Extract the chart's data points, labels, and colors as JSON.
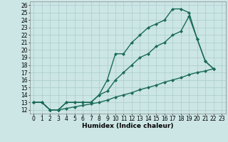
{
  "xlabel": "Humidex (Indice chaleur)",
  "bg_color": "#cce5e5",
  "grid_color": "#aacccc",
  "line_color": "#1a6b5a",
  "xlim": [
    -0.5,
    23.5
  ],
  "ylim": [
    11.5,
    26.5
  ],
  "xticks": [
    0,
    1,
    2,
    3,
    4,
    5,
    6,
    7,
    8,
    9,
    10,
    11,
    12,
    13,
    14,
    15,
    16,
    17,
    18,
    19,
    20,
    21,
    22,
    23
  ],
  "yticks": [
    12,
    13,
    14,
    15,
    16,
    17,
    18,
    19,
    20,
    21,
    22,
    23,
    24,
    25,
    26
  ],
  "line1_x": [
    0,
    1,
    2,
    3,
    4,
    5,
    6,
    7,
    8,
    9,
    10,
    11,
    12,
    13,
    14,
    15,
    16,
    17,
    18,
    19,
    20,
    21,
    22
  ],
  "line1_y": [
    13,
    13,
    12,
    12,
    13,
    13,
    13,
    13,
    14,
    16,
    19.5,
    19.5,
    21,
    22,
    23,
    23.5,
    24,
    25.5,
    25.5,
    25,
    21.5,
    18.5,
    17.5
  ],
  "line2_x": [
    0,
    1,
    2,
    3,
    4,
    5,
    6,
    7,
    8,
    9,
    10,
    11,
    12,
    13,
    14,
    15,
    16,
    17,
    18,
    19,
    20,
    21,
    22
  ],
  "line2_y": [
    13,
    13,
    12,
    12,
    13,
    13,
    13,
    13,
    14,
    14.5,
    16,
    17,
    18,
    19,
    19.5,
    20.5,
    21,
    22,
    22.5,
    24.5,
    21.5,
    18.5,
    17.5
  ],
  "line3_x": [
    0,
    1,
    2,
    3,
    4,
    5,
    6,
    7,
    8,
    9,
    10,
    11,
    12,
    13,
    14,
    15,
    16,
    17,
    18,
    19,
    20,
    21,
    22
  ],
  "line3_y": [
    13,
    13,
    12,
    12,
    12.2,
    12.4,
    12.6,
    12.8,
    13.0,
    13.3,
    13.7,
    14.0,
    14.3,
    14.7,
    15.0,
    15.3,
    15.7,
    16.0,
    16.3,
    16.7,
    17.0,
    17.2,
    17.5
  ],
  "markersize": 2.5,
  "linewidth": 1.0,
  "xlabel_fontsize": 6.5,
  "tick_fontsize": 5.5
}
